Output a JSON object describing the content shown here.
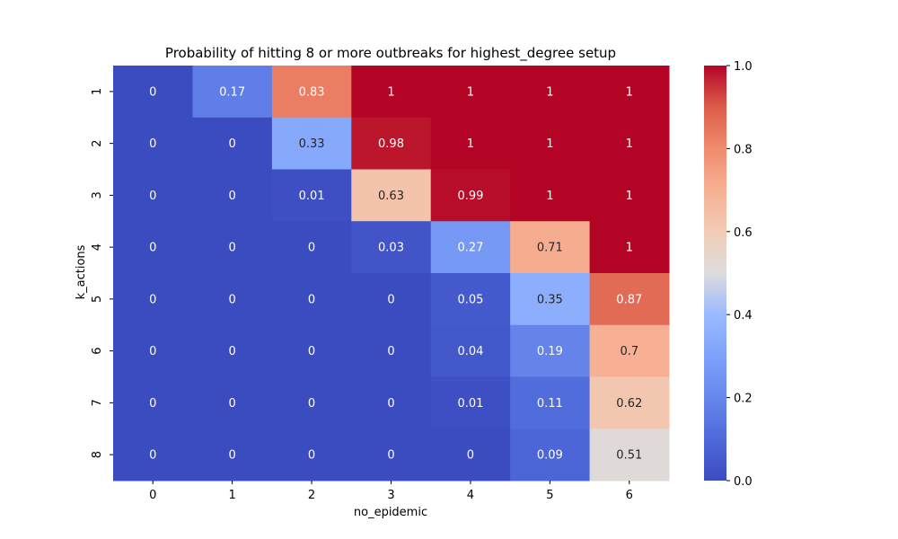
{
  "chart_data": {
    "type": "heatmap",
    "title": "Probability of hitting 8 or more outbreaks for highest_degree setup",
    "xlabel": "no_epidemic",
    "ylabel": "k_actions",
    "x_categories": [
      "0",
      "1",
      "2",
      "3",
      "4",
      "5",
      "6"
    ],
    "y_categories": [
      "1",
      "2",
      "3",
      "4",
      "5",
      "6",
      "7",
      "8"
    ],
    "values": [
      [
        0,
        0.17,
        0.83,
        1,
        1,
        1,
        1
      ],
      [
        0,
        0,
        0.33,
        0.98,
        1,
        1,
        1
      ],
      [
        0,
        0,
        0.01,
        0.63,
        0.99,
        1,
        1
      ],
      [
        0,
        0,
        0,
        0.03,
        0.27,
        0.71,
        1
      ],
      [
        0,
        0,
        0,
        0,
        0.05,
        0.35,
        0.87
      ],
      [
        0,
        0,
        0,
        0,
        0.04,
        0.19,
        0.7
      ],
      [
        0,
        0,
        0,
        0,
        0.01,
        0.11,
        0.62
      ],
      [
        0,
        0,
        0,
        0,
        0,
        0.09,
        0.51
      ]
    ],
    "colormap": "coolwarm",
    "vmin": 0,
    "vmax": 1,
    "colorbar_ticks": [
      "0.0",
      "0.2",
      "0.4",
      "0.6",
      "0.8",
      "1.0"
    ],
    "annotate": true,
    "grid": false
  }
}
